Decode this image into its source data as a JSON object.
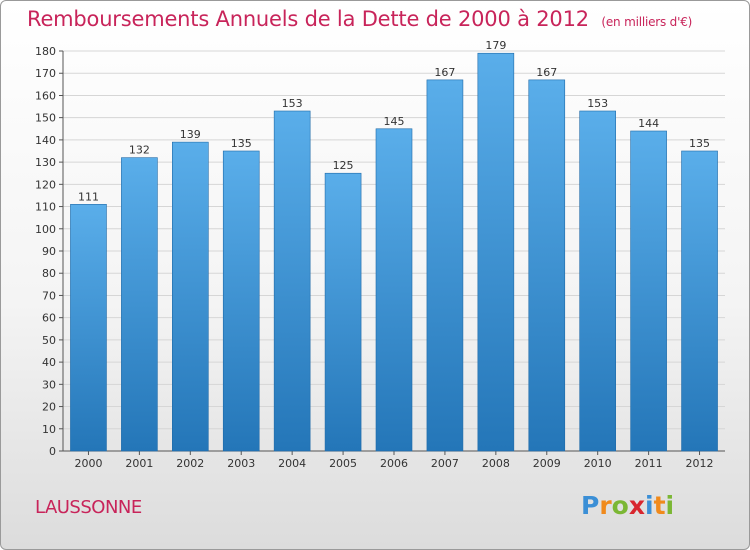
{
  "header": {
    "title": "Remboursements Annuels de la Dette de 2000 à 2012",
    "unit": "(en milliers d'€)"
  },
  "footer": {
    "town": "LAUSSONNE",
    "brand": "Proxiti"
  },
  "colors": {
    "title": "#c8245a",
    "bar_top": "#5aaeea",
    "bar_bottom": "#2476b8",
    "grid": "#d6d6d6"
  },
  "chart_data": {
    "type": "bar",
    "title": "Remboursements Annuels de la Dette de 2000 à 2012",
    "xlabel": "",
    "ylabel": "",
    "categories": [
      "2000",
      "2001",
      "2002",
      "2003",
      "2004",
      "2005",
      "2006",
      "2007",
      "2008",
      "2009",
      "2010",
      "2011",
      "2012"
    ],
    "values": [
      111,
      132,
      139,
      135,
      153,
      125,
      145,
      167,
      179,
      167,
      153,
      144,
      135
    ],
    "ylim": [
      0,
      180
    ],
    "yticks": [
      0,
      10,
      20,
      30,
      40,
      50,
      60,
      70,
      80,
      90,
      100,
      110,
      120,
      130,
      140,
      150,
      160,
      170,
      180
    ],
    "grid": true,
    "data_labels": true
  }
}
